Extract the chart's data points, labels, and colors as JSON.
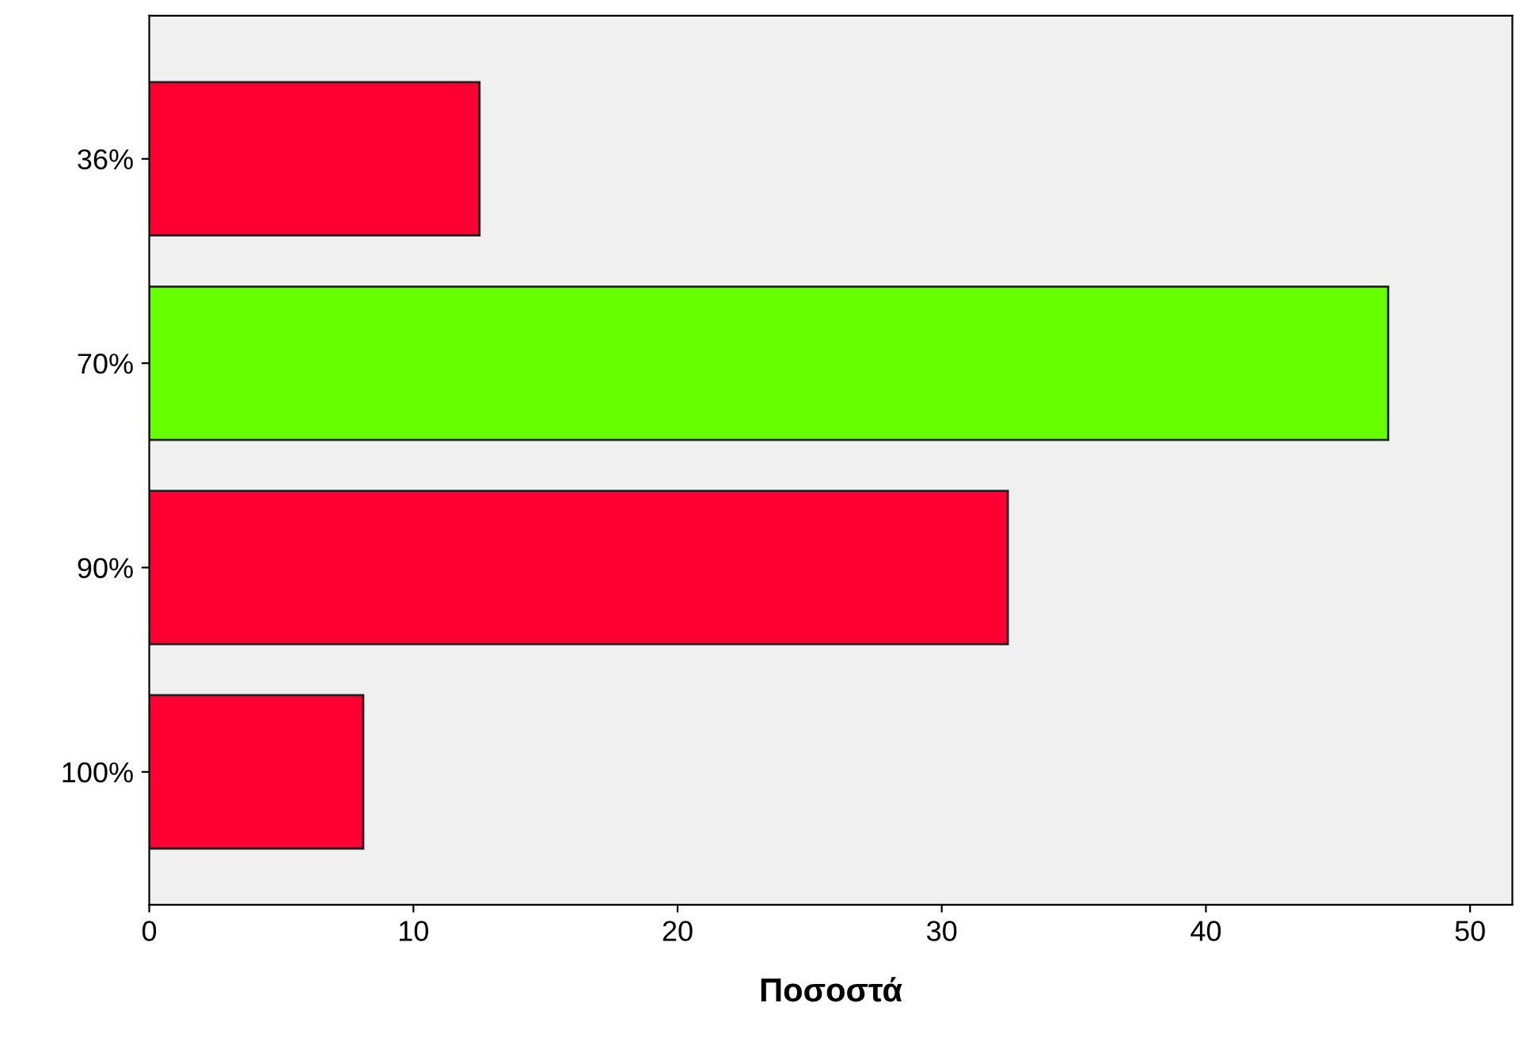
{
  "chart_data": {
    "type": "bar",
    "orientation": "horizontal",
    "xlabel": "Ποσοστά",
    "categories": [
      "36%",
      "70%",
      "90%",
      "100%"
    ],
    "values": [
      12.5,
      46.9,
      32.5,
      8.1
    ],
    "colors": [
      "#ff0033",
      "#66ff00",
      "#ff0033",
      "#ff0033"
    ],
    "xlim": [
      0,
      51.6
    ],
    "xticks": [
      0,
      10,
      20,
      30,
      40,
      50
    ],
    "grid": false
  }
}
